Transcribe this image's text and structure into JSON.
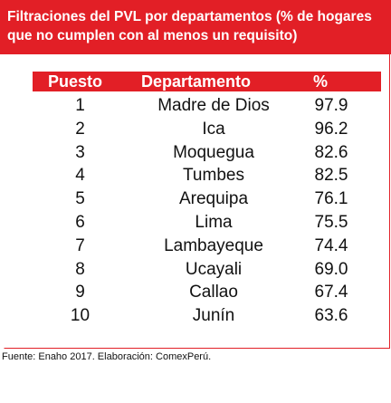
{
  "title": "Filtraciones del PVL por departamentos (% de hogares que no cumplen con al menos un requisito)",
  "table": {
    "headers": {
      "rank": "Puesto",
      "department": "Departamento",
      "percent": "%"
    },
    "rows": [
      {
        "rank": "1",
        "department": "Madre de Dios",
        "percent": "97.9"
      },
      {
        "rank": "2",
        "department": "Ica",
        "percent": "96.2"
      },
      {
        "rank": "3",
        "department": "Moquegua",
        "percent": "82.6"
      },
      {
        "rank": "4",
        "department": "Tumbes",
        "percent": "82.5"
      },
      {
        "rank": "5",
        "department": "Arequipa",
        "percent": "76.1"
      },
      {
        "rank": "6",
        "department": "Lima",
        "percent": "75.5"
      },
      {
        "rank": "7",
        "department": "Lambayeque",
        "percent": "74.4"
      },
      {
        "rank": "8",
        "department": "Ucayali",
        "percent": "69.0"
      },
      {
        "rank": "9",
        "department": "Callao",
        "percent": "67.4"
      },
      {
        "rank": "10",
        "department": "Junín",
        "percent": "63.6"
      }
    ]
  },
  "source": "Fuente: Enaho 2017. Elaboración: ComexPerú.",
  "colors": {
    "accent": "#e21f26",
    "text": "#111111",
    "background": "#ffffff"
  }
}
